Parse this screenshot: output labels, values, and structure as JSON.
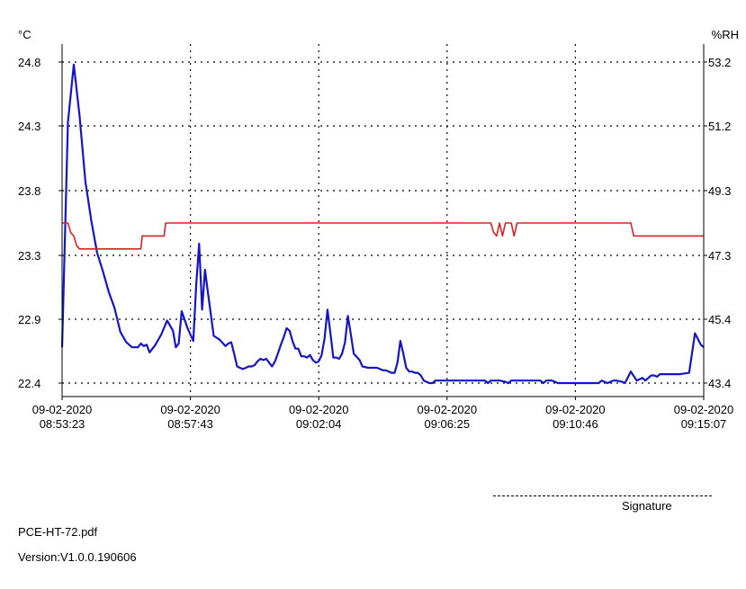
{
  "chart_data": {
    "type": "line",
    "left_axis_unit": "°C",
    "right_axis_unit": "%RH",
    "left_ticks": [
      24.8,
      24.3,
      23.8,
      23.3,
      22.9,
      22.4
    ],
    "right_ticks": [
      53.2,
      51.2,
      49.3,
      47.3,
      45.4,
      43.4
    ],
    "x_ticks": [
      {
        "date": "09-02-2020",
        "time": "08:53:23"
      },
      {
        "date": "09-02-2020",
        "time": "08:57:43"
      },
      {
        "date": "09-02-2020",
        "time": "09:02:04"
      },
      {
        "date": "09-02-2020",
        "time": "09:06:25"
      },
      {
        "date": "09-02-2020",
        "time": "09:10:46"
      },
      {
        "date": "09-02-2020",
        "time": "09:15:07"
      }
    ],
    "grid": true,
    "series": [
      {
        "color": "#1515c8",
        "axis": "left",
        "points": [
          [
            0,
            22.68
          ],
          [
            2,
            24.33
          ],
          [
            4,
            24.78
          ],
          [
            6,
            24.38
          ],
          [
            8,
            23.87
          ],
          [
            10,
            23.57
          ],
          [
            12,
            23.32
          ],
          [
            14,
            23.2
          ],
          [
            16,
            23.07
          ],
          [
            18,
            22.97
          ],
          [
            20,
            22.8
          ],
          [
            22,
            22.72
          ],
          [
            24,
            22.68
          ],
          [
            26,
            22.68
          ],
          [
            27,
            22.71
          ],
          [
            28,
            22.69
          ],
          [
            29,
            22.7
          ],
          [
            30,
            22.64
          ],
          [
            32,
            22.7
          ],
          [
            34,
            22.78
          ],
          [
            36,
            22.89
          ],
          [
            38,
            22.81
          ],
          [
            39,
            22.68
          ],
          [
            40,
            22.71
          ],
          [
            41,
            22.95
          ],
          [
            43,
            22.83
          ],
          [
            45,
            22.73
          ],
          [
            46,
            23.12
          ],
          [
            47,
            23.39
          ],
          [
            48,
            22.96
          ],
          [
            49,
            23.21
          ],
          [
            50,
            23.07
          ],
          [
            52,
            22.77
          ],
          [
            54,
            22.74
          ],
          [
            56,
            22.69
          ],
          [
            57,
            22.71
          ],
          [
            58,
            22.72
          ],
          [
            59,
            22.63
          ],
          [
            60,
            22.53
          ],
          [
            61,
            22.52
          ],
          [
            62,
            22.51
          ],
          [
            63,
            22.52
          ],
          [
            64,
            22.53
          ],
          [
            65,
            22.53
          ],
          [
            66,
            22.54
          ],
          [
            67,
            22.57
          ],
          [
            68,
            22.59
          ],
          [
            69,
            22.58
          ],
          [
            70,
            22.59
          ],
          [
            71,
            22.56
          ],
          [
            72,
            22.53
          ],
          [
            73,
            22.57
          ],
          [
            74,
            22.63
          ],
          [
            75,
            22.7
          ],
          [
            76,
            22.76
          ],
          [
            77,
            22.83
          ],
          [
            78,
            22.81
          ],
          [
            79,
            22.73
          ],
          [
            80,
            22.67
          ],
          [
            81,
            22.67
          ],
          [
            82,
            22.61
          ],
          [
            83,
            22.61
          ],
          [
            84,
            22.6
          ],
          [
            85,
            22.62
          ],
          [
            86,
            22.58
          ],
          [
            87,
            22.56
          ],
          [
            88,
            22.57
          ],
          [
            89,
            22.62
          ],
          [
            90,
            22.75
          ],
          [
            91,
            22.96
          ],
          [
            92,
            22.79
          ],
          [
            93,
            22.6
          ],
          [
            94,
            22.6
          ],
          [
            95,
            22.59
          ],
          [
            96,
            22.63
          ],
          [
            97,
            22.72
          ],
          [
            98,
            22.92
          ],
          [
            99,
            22.78
          ],
          [
            100,
            22.63
          ],
          [
            102,
            22.58
          ],
          [
            103,
            22.53
          ],
          [
            105,
            22.52
          ],
          [
            107,
            22.52
          ],
          [
            108,
            22.52
          ],
          [
            109,
            22.51
          ],
          [
            110,
            22.5
          ],
          [
            111,
            22.5
          ],
          [
            113,
            22.48
          ],
          [
            114,
            22.48
          ],
          [
            115,
            22.56
          ],
          [
            116,
            22.73
          ],
          [
            117,
            22.63
          ],
          [
            118,
            22.52
          ],
          [
            119,
            22.49
          ],
          [
            120,
            22.49
          ],
          [
            121,
            22.48
          ],
          [
            122,
            22.48
          ],
          [
            123,
            22.46
          ],
          [
            124,
            22.42
          ],
          [
            125,
            22.41
          ],
          [
            126,
            22.4
          ],
          [
            127,
            22.4
          ],
          [
            128,
            22.42
          ],
          [
            130,
            22.42
          ],
          [
            135,
            22.42
          ],
          [
            140,
            22.42
          ],
          [
            145,
            22.42
          ],
          [
            146,
            22.4
          ],
          [
            147,
            22.42
          ],
          [
            148,
            22.42
          ],
          [
            150,
            22.42
          ],
          [
            152,
            22.41
          ],
          [
            153,
            22.4
          ],
          [
            154,
            22.42
          ],
          [
            156,
            22.42
          ],
          [
            160,
            22.42
          ],
          [
            164,
            22.42
          ],
          [
            165,
            22.4
          ],
          [
            166,
            22.42
          ],
          [
            168,
            22.42
          ],
          [
            170,
            22.4
          ],
          [
            172,
            22.4
          ],
          [
            175,
            22.4
          ],
          [
            180,
            22.4
          ],
          [
            184,
            22.4
          ],
          [
            185,
            22.42
          ],
          [
            186,
            22.41
          ],
          [
            187,
            22.4
          ],
          [
            188,
            22.41
          ],
          [
            189,
            22.42
          ],
          [
            190,
            22.42
          ],
          [
            192,
            22.41
          ],
          [
            193,
            22.4
          ],
          [
            195,
            22.49
          ],
          [
            197,
            22.42
          ],
          [
            199,
            22.44
          ],
          [
            200,
            22.42
          ],
          [
            201,
            22.44
          ],
          [
            202,
            22.46
          ],
          [
            203,
            22.46
          ],
          [
            204,
            22.45
          ],
          [
            205,
            22.47
          ],
          [
            206,
            22.47
          ],
          [
            209,
            22.47
          ],
          [
            212,
            22.47
          ],
          [
            215,
            22.48
          ],
          [
            217,
            22.79
          ],
          [
            219,
            22.7
          ],
          [
            220,
            22.68
          ]
        ]
      },
      {
        "color": "#e02020",
        "axis": "right",
        "points": [
          [
            0,
            48.3
          ],
          [
            1,
            48.3
          ],
          [
            2,
            48.3
          ],
          [
            3,
            48.0
          ],
          [
            4,
            47.9
          ],
          [
            5,
            47.6
          ],
          [
            6,
            47.5
          ],
          [
            8,
            47.5
          ],
          [
            10,
            47.5
          ],
          [
            15,
            47.5
          ],
          [
            20,
            47.5
          ],
          [
            25,
            47.5
          ],
          [
            27,
            47.5
          ],
          [
            27.5,
            47.9
          ],
          [
            33,
            47.9
          ],
          [
            35,
            47.9
          ],
          [
            35.5,
            48.3
          ],
          [
            40,
            48.3
          ],
          [
            60,
            48.3
          ],
          [
            80,
            48.3
          ],
          [
            100,
            48.3
          ],
          [
            120,
            48.3
          ],
          [
            140,
            48.3
          ],
          [
            147,
            48.3
          ],
          [
            148,
            48.0
          ],
          [
            149,
            47.9
          ],
          [
            150,
            48.3
          ],
          [
            151,
            47.9
          ],
          [
            152,
            48.3
          ],
          [
            154,
            48.3
          ],
          [
            155,
            47.9
          ],
          [
            156,
            48.3
          ],
          [
            160,
            48.3
          ],
          [
            180,
            48.3
          ],
          [
            195,
            48.3
          ],
          [
            196,
            47.9
          ],
          [
            197,
            47.9
          ],
          [
            200,
            47.9
          ],
          [
            210,
            47.9
          ],
          [
            220,
            47.9
          ]
        ]
      }
    ]
  },
  "signature_label": "Signature",
  "footer": {
    "filename": "PCE-HT-72.pdf",
    "version": "Version:V1.0.0.190606"
  }
}
